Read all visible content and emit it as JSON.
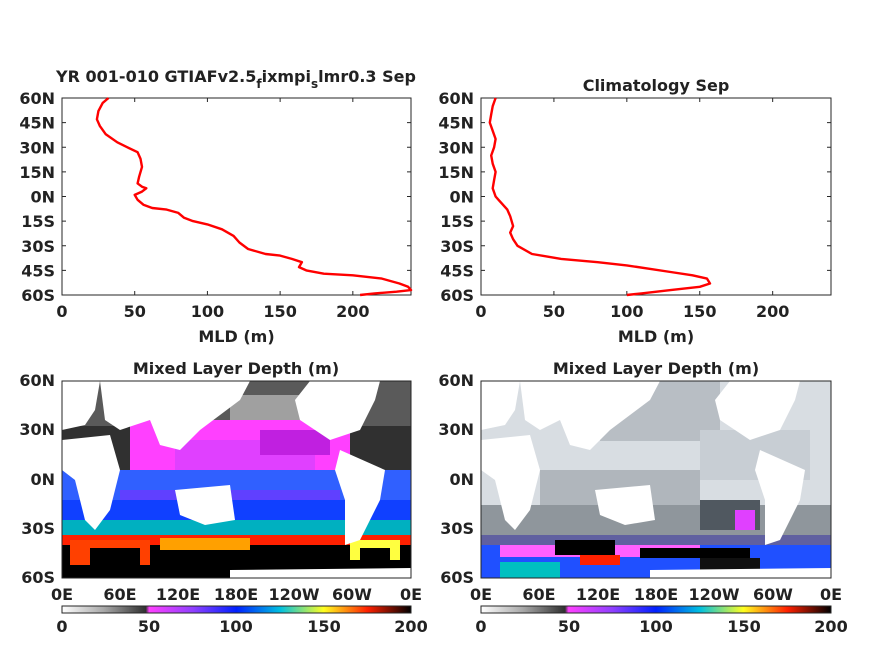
{
  "figure": {
    "top_left_title_main": "YR 001-010 GTIAFv2.5",
    "top_left_title_sub1": "f",
    "top_left_title_mid": "ixmpi",
    "top_left_title_sub2": "s",
    "top_left_title_end": "lmr0.3 Sep",
    "top_right_title": "Climatology Sep",
    "bottom_left_title": "Mixed Layer Depth (m)",
    "bottom_right_title": "Mixed Layer Depth (m)"
  },
  "chart_data": [
    {
      "type": "line",
      "title": "YR 001-010 GTIAFv2.5_fixmpi_slmr0.3 Sep",
      "xlabel": "MLD (m)",
      "ylabel": "",
      "xlim": [
        0,
        240
      ],
      "ylim": [
        -60,
        60
      ],
      "xticks": [
        "0",
        "50",
        "100",
        "150",
        "200"
      ],
      "yticks": [
        "60N",
        "45N",
        "30N",
        "15N",
        "0N",
        "15S",
        "30S",
        "45S",
        "60S"
      ],
      "color": "#ff0000",
      "x": [
        32,
        28,
        25,
        24,
        26,
        30,
        38,
        45,
        52,
        54,
        55,
        53,
        52,
        55,
        58,
        55,
        50,
        52,
        56,
        62,
        72,
        80,
        84,
        90,
        100,
        110,
        118,
        122,
        128,
        140,
        150,
        158,
        165,
        163,
        168,
        180,
        200,
        220,
        232,
        238,
        240,
        230,
        215,
        205
      ],
      "y": [
        60,
        57,
        52,
        47,
        43,
        38,
        33,
        30,
        27,
        23,
        18,
        12,
        8,
        6,
        5,
        3,
        1,
        -2,
        -5,
        -7,
        -8,
        -10,
        -13,
        -15,
        -17,
        -20,
        -24,
        -28,
        -32,
        -35,
        -36,
        -38,
        -40,
        -43,
        -45,
        -47,
        -48,
        -50,
        -53,
        -55,
        -57,
        -58,
        -59,
        -60
      ]
    },
    {
      "type": "line",
      "title": "Climatology Sep",
      "xlabel": "MLD (m)",
      "ylabel": "",
      "xlim": [
        0,
        240
      ],
      "ylim": [
        -60,
        60
      ],
      "xticks": [
        "0",
        "50",
        "100",
        "150",
        "200"
      ],
      "yticks": [
        "60N",
        "45N",
        "30N",
        "15N",
        "0N",
        "15S",
        "30S",
        "45S",
        "60S"
      ],
      "color": "#ff0000",
      "x": [
        10,
        8,
        7,
        6,
        8,
        10,
        9,
        7,
        8,
        10,
        9,
        8,
        10,
        12,
        15,
        18,
        20,
        22,
        20,
        22,
        25,
        35,
        55,
        80,
        100,
        115,
        130,
        145,
        155,
        157,
        150,
        130,
        110,
        100
      ],
      "y": [
        60,
        55,
        50,
        45,
        40,
        35,
        30,
        25,
        20,
        15,
        10,
        5,
        0,
        -2,
        -5,
        -8,
        -12,
        -18,
        -22,
        -26,
        -30,
        -35,
        -38,
        -40,
        -42,
        -44,
        -46,
        -48,
        -50,
        -53,
        -55,
        -57,
        -59,
        -60
      ]
    },
    {
      "type": "heatmap",
      "title": "Mixed Layer Depth (m)",
      "xticks": [
        "0E",
        "60E",
        "120E",
        "180E",
        "120W",
        "60W",
        "0E"
      ],
      "yticks": [
        "60N",
        "30N",
        "0N",
        "30S",
        "60S"
      ],
      "colorbar_ticks": [
        "0",
        "50",
        "100",
        "150",
        "200"
      ],
      "clim": [
        0,
        200
      ],
      "colorbar_colors": [
        "#ffffff",
        "#8f8f8f",
        "#202020",
        "#ff00ff",
        "#00a0ff",
        "#0000ff",
        "#00e0a0",
        "#ffff00",
        "#ff0000",
        "#000000"
      ]
    },
    {
      "type": "heatmap",
      "title": "Mixed Layer Depth (m)",
      "xticks": [
        "0E",
        "60E",
        "120E",
        "180E",
        "120W",
        "60W",
        "0E"
      ],
      "yticks": [
        "60N",
        "30N",
        "0N",
        "30S",
        "60S"
      ],
      "colorbar_ticks": [
        "0",
        "50",
        "100",
        "150",
        "200"
      ],
      "clim": [
        0,
        200
      ],
      "colorbar_colors": [
        "#ffffff",
        "#8f8f8f",
        "#202020",
        "#ff00ff",
        "#00a0ff",
        "#0000ff",
        "#00e0a0",
        "#ffff00",
        "#ff0000",
        "#000000"
      ]
    }
  ]
}
